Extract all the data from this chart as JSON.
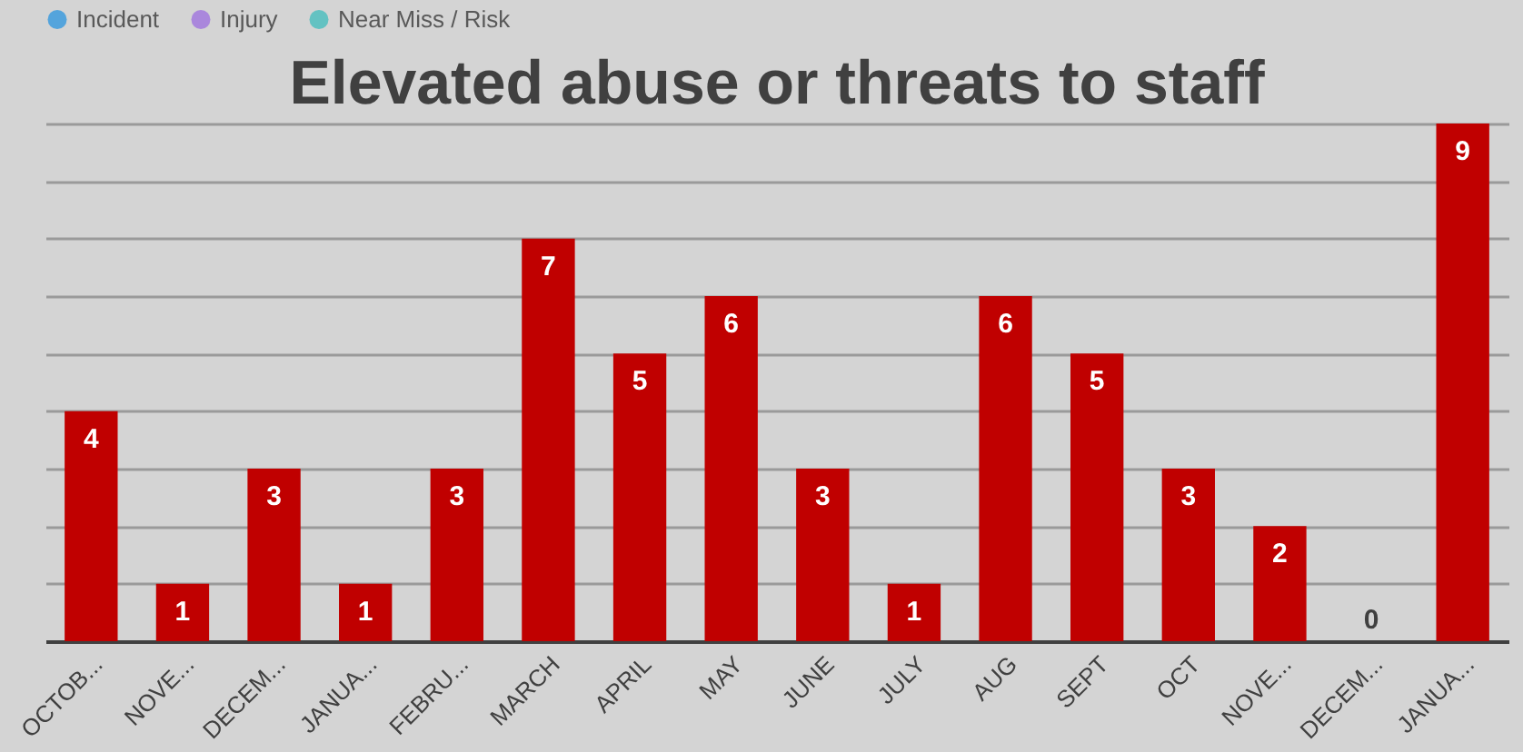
{
  "chart_data": {
    "type": "bar",
    "title": "Elevated abuse or threats to staff",
    "categories": [
      "OCTOB...",
      "NOVE...",
      "DECEM...",
      "JANUA...",
      "FEBRU...",
      "MARCH",
      "APRIL",
      "MAY",
      "JUNE",
      "JULY",
      "AUG",
      "SEPT",
      "OCT",
      "NOVE...",
      "DECEM...",
      "JANUA..."
    ],
    "series": [
      {
        "color": "#c00000",
        "values": [
          4,
          1,
          3,
          1,
          3,
          7,
          5,
          6,
          3,
          1,
          6,
          5,
          3,
          2,
          0,
          9
        ]
      },
      {
        "name": "Incident",
        "color": "#1e90e0",
        "values": [
          null,
          null,
          null,
          null,
          null,
          null,
          null,
          null,
          null,
          null,
          null,
          null,
          null,
          null,
          null,
          null
        ]
      },
      {
        "name": "Injury",
        "color": "#9966e0",
        "values": [
          null,
          null,
          null,
          null,
          null,
          null,
          null,
          null,
          null,
          null,
          null,
          null,
          null,
          null,
          null,
          null
        ]
      },
      {
        "name": "Near Miss / Risk",
        "color": "#33bbbb",
        "values": [
          null,
          null,
          null,
          null,
          null,
          null,
          null,
          null,
          null,
          null,
          null,
          null,
          null,
          null,
          null,
          null
        ]
      }
    ],
    "ylim": [
      0,
      9
    ],
    "yticks": [
      {
        "value": 0,
        "label": null
      },
      {
        "value": 1,
        "label": null
      },
      {
        "value": 2,
        "label": null
      },
      {
        "value": 3,
        "label": null
      },
      {
        "value": 4,
        "label": null
      },
      {
        "value": 5,
        "label": null
      },
      {
        "value": 6,
        "label": null
      },
      {
        "value": 7,
        "label": null
      },
      {
        "value": 8,
        "label": null
      },
      {
        "value": 9,
        "label": null
      }
    ],
    "tick_labels": "x",
    "grid": "y",
    "legend": "top",
    "data_labels": true
  }
}
